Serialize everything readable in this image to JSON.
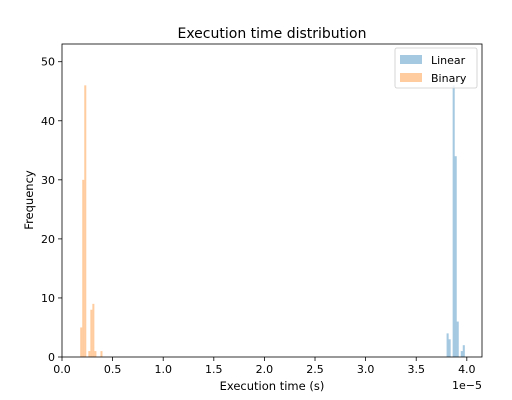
{
  "chart_data": {
    "type": "histogram",
    "title": "Execution time distribution",
    "xlabel": "Execution time (s)",
    "ylabel": "Frequency",
    "x_offset_label": "1e−5",
    "xlim": [
      0.0,
      4.15
    ],
    "ylim": [
      0,
      53
    ],
    "x_ticks": [
      0.0,
      0.5,
      1.0,
      1.5,
      2.0,
      2.5,
      3.0,
      3.5,
      4.0
    ],
    "x_tick_labels": [
      "0.0",
      "0.5",
      "1.0",
      "1.5",
      "2.0",
      "2.5",
      "3.0",
      "3.5",
      "4.0"
    ],
    "y_ticks": [
      0,
      10,
      20,
      30,
      40,
      50
    ],
    "y_tick_labels": [
      "0",
      "10",
      "20",
      "30",
      "40",
      "50"
    ],
    "grid": false,
    "legend_position": "top-right",
    "series": [
      {
        "name": "Linear",
        "color": "#1f77b4",
        "alpha": 0.4,
        "bin_width": 0.0205,
        "bins": [
          {
            "x": 3.8,
            "count": 4
          },
          {
            "x": 3.82,
            "count": 3
          },
          {
            "x": 3.86,
            "count": 46
          },
          {
            "x": 3.88,
            "count": 34
          },
          {
            "x": 3.9,
            "count": 6
          },
          {
            "x": 3.94,
            "count": 1
          },
          {
            "x": 3.96,
            "count": 2
          }
        ]
      },
      {
        "name": "Binary",
        "color": "#ff7f0e",
        "alpha": 0.4,
        "bin_width": 0.02,
        "bins": [
          {
            "x": 0.18,
            "count": 5
          },
          {
            "x": 0.2,
            "count": 30
          },
          {
            "x": 0.22,
            "count": 46
          },
          {
            "x": 0.26,
            "count": 1
          },
          {
            "x": 0.28,
            "count": 8
          },
          {
            "x": 0.3,
            "count": 9
          },
          {
            "x": 0.32,
            "count": 1
          },
          {
            "x": 0.38,
            "count": 1
          }
        ]
      }
    ]
  }
}
